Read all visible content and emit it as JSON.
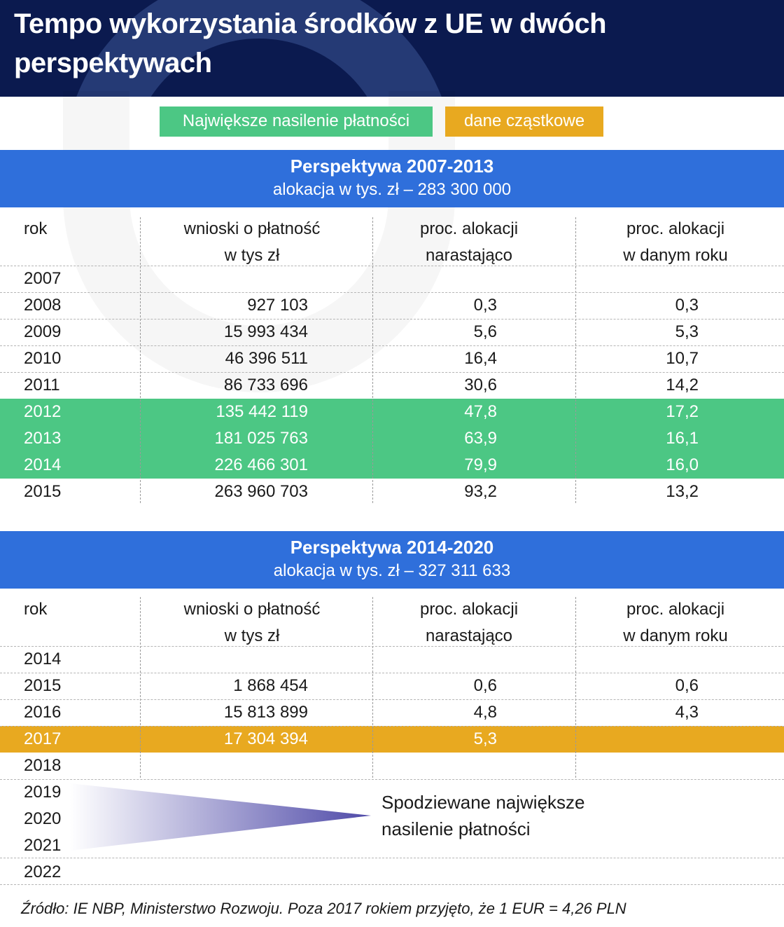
{
  "title": "Tempo wykorzystania środków z UE w dwóch perspektywach",
  "legend": {
    "green": "Największe nasilenie płatności",
    "orange": "dane cząstkowe",
    "green_color": "#4cc784",
    "orange_color": "#e8a920"
  },
  "columns": {
    "c0": "rok",
    "c1a": "wnioski o płatność",
    "c1b": "w tys zł",
    "c2a": "proc. alokacji",
    "c2b": "narastająco",
    "c3a": "proc. alokacji",
    "c3b": "w danym roku"
  },
  "chart_data": [
    {
      "type": "table",
      "title": "Perspektywa 2007-2013",
      "subtitle": "alokacja w tys. zł – 283 300 000",
      "rows": [
        {
          "year": "2007",
          "payments": "",
          "cumulative": "",
          "annual": "",
          "highlight": ""
        },
        {
          "year": "2008",
          "payments": "927 103",
          "cumulative": "0,3",
          "annual": "0,3",
          "highlight": ""
        },
        {
          "year": "2009",
          "payments": "15 993 434",
          "cumulative": "5,6",
          "annual": "5,3",
          "highlight": ""
        },
        {
          "year": "2010",
          "payments": "46 396 511",
          "cumulative": "16,4",
          "annual": "10,7",
          "highlight": ""
        },
        {
          "year": "2011",
          "payments": "86 733 696",
          "cumulative": "30,6",
          "annual": "14,2",
          "highlight": ""
        },
        {
          "year": "2012",
          "payments": "135 442 119",
          "cumulative": "47,8",
          "annual": "17,2",
          "highlight": "green"
        },
        {
          "year": "2013",
          "payments": "181 025 763",
          "cumulative": "63,9",
          "annual": "16,1",
          "highlight": "green"
        },
        {
          "year": "2014",
          "payments": "226 466 301",
          "cumulative": "79,9",
          "annual": "16,0",
          "highlight": "green"
        },
        {
          "year": "2015",
          "payments": "263 960 703",
          "cumulative": "93,2",
          "annual": "13,2",
          "highlight": ""
        }
      ]
    },
    {
      "type": "table",
      "title": "Perspektywa 2014-2020",
      "subtitle": "alokacja w tys. zł – 327 311 633",
      "rows": [
        {
          "year": "2014",
          "payments": "",
          "cumulative": "",
          "annual": "",
          "highlight": ""
        },
        {
          "year": "2015",
          "payments": "1 868 454",
          "cumulative": "0,6",
          "annual": "0,6",
          "highlight": ""
        },
        {
          "year": "2016",
          "payments": "15 813 899",
          "cumulative": "4,8",
          "annual": "4,3",
          "highlight": ""
        },
        {
          "year": "2017",
          "payments": "17 304 394",
          "cumulative": "5,3",
          "annual": "",
          "highlight": "orange"
        },
        {
          "year": "2018",
          "payments": "",
          "cumulative": "",
          "annual": "",
          "highlight": ""
        },
        {
          "year": "2019",
          "payments": "",
          "cumulative": "",
          "annual": "",
          "highlight": ""
        },
        {
          "year": "2020",
          "payments": "",
          "cumulative": "",
          "annual": "",
          "highlight": ""
        },
        {
          "year": "2021",
          "payments": "",
          "cumulative": "",
          "annual": "",
          "highlight": ""
        },
        {
          "year": "2022",
          "payments": "",
          "cumulative": "",
          "annual": "",
          "highlight": ""
        }
      ]
    }
  ],
  "annotation": {
    "line1": "Spodziewane największe",
    "line2": "nasilenie płatności"
  },
  "source": "Źródło: IE NBP, Ministerstwo Rozwoju. Poza 2017 rokiem przyjęto, że 1 EUR = 4,26 PLN"
}
